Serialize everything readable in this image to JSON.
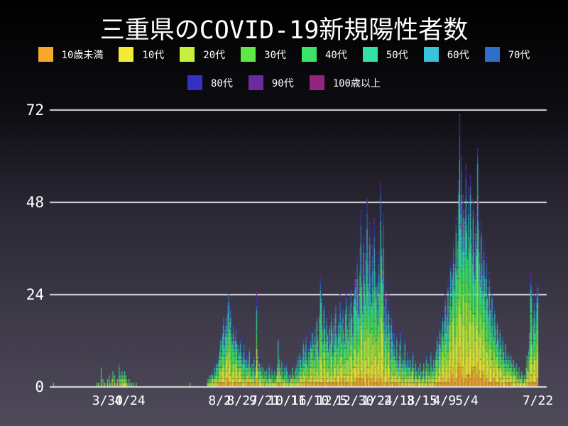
{
  "title": "三重県のCOVID-19新規陽性者数",
  "colors": {
    "background_top": "#000000",
    "background_bottom": "#4e4a5a",
    "gridline": "#eeeef4",
    "text": "#ffffff",
    "bar_edge": "#0c0c16"
  },
  "chart_data": {
    "type": "bar",
    "stacked": true,
    "title": "三重県のCOVID-19新規陽性者数",
    "xlabel": "",
    "ylabel": "",
    "ylim": [
      0,
      72
    ],
    "yticks": [
      0,
      24,
      48,
      72
    ],
    "grid": true,
    "legend_position": "top",
    "x_axis": {
      "start_date": "2020-01-30",
      "end_date": "2021-07-22",
      "unit": "day",
      "total_days": 540
    },
    "xticks": [
      {
        "label": "3/30",
        "day": 60
      },
      {
        "label": "4/24",
        "day": 85
      },
      {
        "label": "8/2",
        "day": 185
      },
      {
        "label": "8/27",
        "day": 210
      },
      {
        "label": "9/21",
        "day": 235
      },
      {
        "label": "10/16",
        "day": 260
      },
      {
        "label": "11/10",
        "day": 285
      },
      {
        "label": "12/5",
        "day": 310
      },
      {
        "label": "12/30",
        "day": 335
      },
      {
        "label": "1/24",
        "day": 360
      },
      {
        "label": "2/18",
        "day": 385
      },
      {
        "label": "3/15",
        "day": 410
      },
      {
        "label": "4/9",
        "day": 435
      },
      {
        "label": "5/4",
        "day": 460
      },
      {
        "label": "7/22",
        "day": 539
      }
    ],
    "groups": [
      {
        "label": "10歳未満",
        "color": "#f5a82a",
        "weight": 0.06
      },
      {
        "label": "10代",
        "color": "#f3eb33",
        "weight": 0.1
      },
      {
        "label": "20代",
        "color": "#c4ef3b",
        "weight": 0.18
      },
      {
        "label": "30代",
        "color": "#5ee845",
        "weight": 0.15
      },
      {
        "label": "40代",
        "color": "#3be366",
        "weight": 0.15
      },
      {
        "label": "50代",
        "color": "#31e2a4",
        "weight": 0.13
      },
      {
        "label": "60代",
        "color": "#38c3dc",
        "weight": 0.09
      },
      {
        "label": "70代",
        "color": "#2e70c9",
        "weight": 0.07
      },
      {
        "label": "80代",
        "color": "#3431c2",
        "weight": 0.04
      },
      {
        "label": "90代",
        "color": "#6a2b9e",
        "weight": 0.02
      },
      {
        "label": "100歳以上",
        "color": "#94257e",
        "weight": 0.01
      }
    ],
    "legend_rows": [
      [
        0,
        1,
        2,
        3,
        4,
        5,
        6,
        7
      ],
      [
        8,
        9,
        10
      ]
    ],
    "period_bias": [
      {
        "from": 206,
        "to": 232,
        "older": 1.6
      },
      {
        "from": 336,
        "to": 367,
        "older": 1.4
      },
      {
        "from": 368,
        "to": 395,
        "older": 2.2
      },
      {
        "from": 426,
        "to": 539,
        "younger": 1.35
      }
    ],
    "daily_totals_segments": [
      {
        "start": 0,
        "values": [
          1
        ]
      },
      {
        "start": 48,
        "values": [
          1,
          0,
          1,
          0,
          0,
          5,
          0,
          2,
          0,
          1
        ]
      },
      {
        "start": 60,
        "values": [
          2,
          0,
          3,
          1,
          0,
          2,
          4,
          0,
          3,
          1,
          0,
          2,
          0,
          6,
          3,
          2,
          4,
          3,
          2,
          4,
          3,
          2,
          1,
          0,
          2,
          1,
          0,
          1,
          0,
          1,
          0,
          0,
          1
        ]
      },
      {
        "start": 152,
        "values": [
          1
        ]
      },
      {
        "start": 171,
        "values": [
          1,
          2,
          1,
          3,
          2,
          4,
          3,
          2,
          5,
          4,
          6,
          5,
          6,
          8,
          10,
          12,
          9,
          14,
          18,
          12,
          16,
          20,
          15,
          22,
          24,
          18,
          21,
          15,
          12,
          16,
          10,
          13,
          17,
          11,
          8,
          12,
          9,
          14,
          10,
          7,
          9,
          12,
          8,
          6,
          9,
          5,
          7,
          10,
          6,
          4,
          7,
          5,
          8,
          4,
          6,
          25,
          10,
          5,
          7,
          4,
          6,
          3,
          5,
          2,
          4
        ]
      },
      {
        "start": 236,
        "values": [
          3,
          5,
          2,
          4,
          6,
          3,
          2,
          5,
          3,
          1,
          4,
          2,
          3,
          6,
          13,
          8,
          5,
          3,
          7,
          4,
          2,
          5,
          3,
          6,
          4,
          2,
          3,
          1,
          4,
          2,
          5,
          3,
          2,
          4,
          6,
          3,
          8,
          5,
          10,
          7
        ]
      },
      {
        "start": 276,
        "values": [
          5,
          8,
          12,
          7,
          10,
          14,
          9,
          6,
          11,
          8,
          13,
          10,
          16,
          12,
          9,
          15,
          11,
          18,
          14,
          10,
          20,
          29,
          24,
          16,
          12,
          22,
          17,
          13,
          19,
          15
        ]
      },
      {
        "start": 306,
        "values": [
          11,
          17,
          13,
          20,
          15,
          10,
          18,
          14,
          22,
          16,
          12,
          19,
          15,
          24,
          18,
          13,
          21,
          16,
          12,
          20,
          25,
          17,
          13,
          22,
          18,
          26,
          20,
          15,
          23,
          28
        ]
      },
      {
        "start": 336,
        "values": [
          30,
          24,
          34,
          27,
          21,
          36,
          46,
          31,
          24,
          39,
          33,
          26,
          41,
          49,
          35,
          27,
          43,
          32,
          24,
          37,
          29,
          44,
          33,
          25,
          30,
          22,
          35,
          28,
          53,
          40,
          30,
          45
        ]
      },
      {
        "start": 368,
        "values": [
          24,
          18,
          28,
          21,
          15,
          24,
          18,
          12,
          20,
          15,
          10,
          17,
          12,
          8,
          14,
          10,
          7,
          12,
          16,
          9,
          6,
          11,
          8,
          13,
          9,
          6,
          10,
          7
        ]
      },
      {
        "start": 396,
        "values": [
          5,
          8,
          4,
          6,
          9,
          5,
          3,
          7,
          4,
          2,
          5,
          3,
          6,
          4,
          2,
          4,
          7,
          3,
          5,
          8,
          4,
          6,
          3,
          5,
          9,
          6,
          4,
          7,
          5,
          8
        ]
      },
      {
        "start": 426,
        "values": [
          10,
          14,
          8,
          12,
          17,
          11,
          15,
          20,
          13,
          18,
          24,
          16,
          21,
          28,
          19,
          26,
          33,
          23,
          30,
          38,
          27,
          35,
          44,
          31,
          40,
          54,
          71,
          48,
          60,
          42
        ]
      },
      {
        "start": 456,
        "values": [
          50,
          39,
          46,
          58,
          44,
          35,
          52,
          41,
          55,
          45,
          36,
          49,
          40,
          32,
          45,
          37,
          62,
          48,
          38,
          30,
          43,
          34,
          27,
          38,
          30,
          23,
          34,
          26,
          20,
          30
        ]
      },
      {
        "start": 486,
        "values": [
          22,
          17,
          25,
          19,
          14,
          21,
          16,
          12,
          18,
          13,
          10,
          15,
          11,
          8,
          13,
          9,
          7,
          11,
          8,
          6,
          9,
          7,
          5,
          8,
          6
        ]
      },
      {
        "start": 511,
        "values": [
          4,
          7,
          5,
          3,
          6,
          4,
          2,
          5,
          3,
          2,
          4,
          3,
          1,
          3,
          2
        ]
      },
      {
        "start": 526,
        "values": [
          5,
          8,
          4,
          10,
          14,
          30,
          28,
          12,
          18,
          24,
          15,
          20,
          26,
          27
        ]
      }
    ]
  }
}
